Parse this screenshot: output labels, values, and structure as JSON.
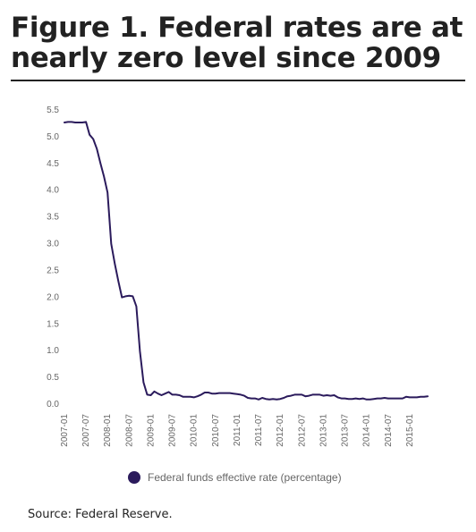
{
  "title": "Figure 1. Federal rates are at nearly zero level since 2009",
  "source": "Source: Federal Reserve.",
  "colors": {
    "line": "#2b1b5c",
    "text": "#222222",
    "axis_text": "#666666"
  },
  "chart_data": {
    "type": "line",
    "title": "",
    "xlabel": "",
    "ylabel": "",
    "ylim": [
      0,
      5.5
    ],
    "grid": false,
    "legend": "bottom-center",
    "yticks": [
      "0.0",
      "0.5",
      "1.0",
      "1.5",
      "2.0",
      "2.5",
      "3.0",
      "3.5",
      "4.0",
      "4.5",
      "5.0",
      "5.5"
    ],
    "xticks": [
      "2007-01",
      "2007-07",
      "2008-01",
      "2008-07",
      "2009-01",
      "2009-07",
      "2010-01",
      "2010-07",
      "2011-01",
      "2011-07",
      "2012-01",
      "2012-07",
      "2013-01",
      "2013-07",
      "2014-01",
      "2014-07",
      "2015-01"
    ],
    "series": [
      {
        "name": "Federal funds effective rate (percentage)",
        "x": [
          "2007-01",
          "2007-02",
          "2007-03",
          "2007-04",
          "2007-05",
          "2007-06",
          "2007-07",
          "2007-08",
          "2007-09",
          "2007-10",
          "2007-11",
          "2007-12",
          "2008-01",
          "2008-02",
          "2008-03",
          "2008-04",
          "2008-05",
          "2008-06",
          "2008-07",
          "2008-08",
          "2008-09",
          "2008-10",
          "2008-11",
          "2008-12",
          "2009-01",
          "2009-02",
          "2009-03",
          "2009-04",
          "2009-05",
          "2009-06",
          "2009-07",
          "2009-08",
          "2009-09",
          "2009-10",
          "2009-11",
          "2009-12",
          "2010-01",
          "2010-02",
          "2010-03",
          "2010-04",
          "2010-05",
          "2010-06",
          "2010-07",
          "2010-08",
          "2010-09",
          "2010-10",
          "2010-11",
          "2010-12",
          "2011-01",
          "2011-02",
          "2011-03",
          "2011-04",
          "2011-05",
          "2011-06",
          "2011-07",
          "2011-08",
          "2011-09",
          "2011-10",
          "2011-11",
          "2011-12",
          "2012-01",
          "2012-02",
          "2012-03",
          "2012-04",
          "2012-05",
          "2012-06",
          "2012-07",
          "2012-08",
          "2012-09",
          "2012-10",
          "2012-11",
          "2012-12",
          "2013-01",
          "2013-02",
          "2013-03",
          "2013-04",
          "2013-05",
          "2013-06",
          "2013-07",
          "2013-08",
          "2013-09",
          "2013-10",
          "2013-11",
          "2013-12",
          "2014-01",
          "2014-02",
          "2014-03",
          "2014-04",
          "2014-05",
          "2014-06",
          "2014-07",
          "2014-08",
          "2014-09",
          "2014-10",
          "2014-11",
          "2014-12",
          "2015-01",
          "2015-02",
          "2015-03",
          "2015-04",
          "2015-05",
          "2015-06"
        ],
        "values": [
          5.25,
          5.26,
          5.26,
          5.25,
          5.25,
          5.25,
          5.26,
          5.02,
          4.94,
          4.76,
          4.49,
          4.24,
          3.94,
          2.98,
          2.61,
          2.28,
          1.98,
          2.0,
          2.01,
          2.0,
          1.81,
          0.97,
          0.39,
          0.16,
          0.15,
          0.22,
          0.18,
          0.15,
          0.18,
          0.21,
          0.16,
          0.16,
          0.15,
          0.12,
          0.12,
          0.12,
          0.11,
          0.13,
          0.16,
          0.2,
          0.2,
          0.18,
          0.18,
          0.19,
          0.19,
          0.19,
          0.19,
          0.18,
          0.17,
          0.16,
          0.14,
          0.1,
          0.09,
          0.09,
          0.07,
          0.1,
          0.08,
          0.07,
          0.08,
          0.07,
          0.08,
          0.1,
          0.13,
          0.14,
          0.16,
          0.16,
          0.16,
          0.13,
          0.14,
          0.16,
          0.16,
          0.16,
          0.14,
          0.15,
          0.14,
          0.15,
          0.11,
          0.09,
          0.09,
          0.08,
          0.08,
          0.09,
          0.08,
          0.09,
          0.07,
          0.07,
          0.08,
          0.09,
          0.09,
          0.1,
          0.09,
          0.09,
          0.09,
          0.09,
          0.09,
          0.12,
          0.11,
          0.11,
          0.11,
          0.12,
          0.12,
          0.13
        ]
      }
    ]
  }
}
